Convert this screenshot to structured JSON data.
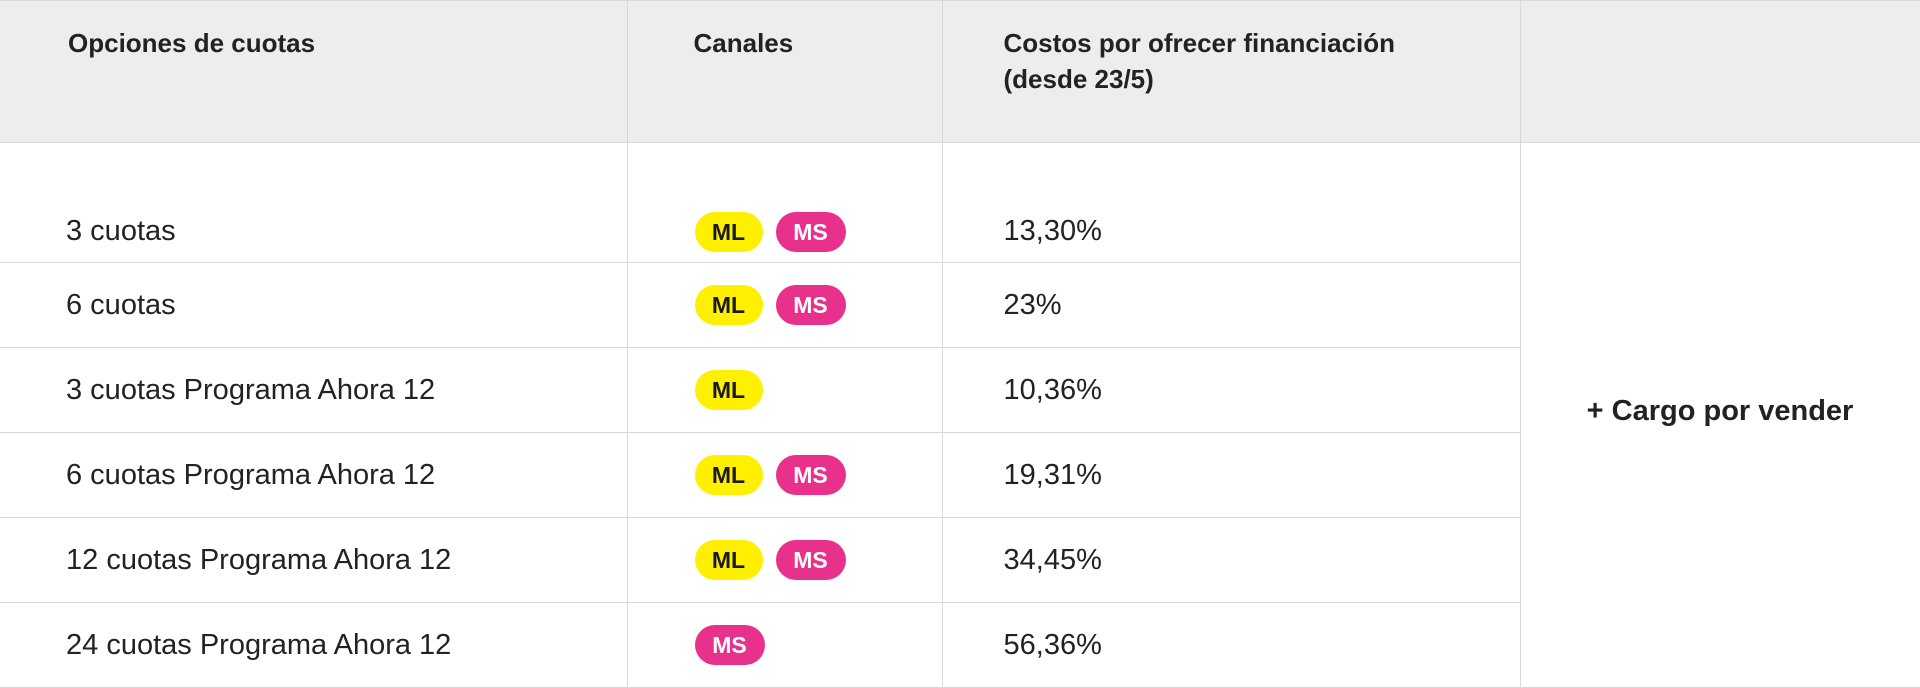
{
  "headers": {
    "options": "Opciones de cuotas",
    "channels": "Canales",
    "costs_line1": "Costos por ofrecer financiación",
    "costs_line2": "(desde 23/5)"
  },
  "extra_charge": "+ Cargo por vender",
  "badge_labels": {
    "ml": "ML",
    "ms": "MS"
  },
  "colors": {
    "ml_badge": "#fff000",
    "ms_badge": "#e8318a",
    "header_bg": "#ededed"
  },
  "rows": [
    {
      "option": "3 cuotas",
      "channels": [
        "ML",
        "MS"
      ],
      "cost": "13,30%"
    },
    {
      "option": "6 cuotas",
      "channels": [
        "ML",
        "MS"
      ],
      "cost": "23%"
    },
    {
      "option": "3 cuotas Programa Ahora 12",
      "channels": [
        "ML"
      ],
      "cost": "10,36%"
    },
    {
      "option": "6 cuotas Programa Ahora 12",
      "channels": [
        "ML",
        "MS"
      ],
      "cost": "19,31%"
    },
    {
      "option": "12 cuotas Programa Ahora 12",
      "channels": [
        "ML",
        "MS"
      ],
      "cost": "34,45%"
    },
    {
      "option": "24 cuotas Programa Ahora 12",
      "channels": [
        "MS"
      ],
      "cost": "56,36%"
    }
  ]
}
